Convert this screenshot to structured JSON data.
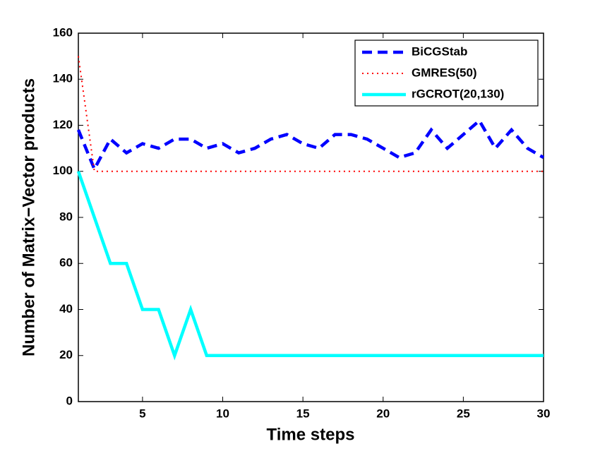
{
  "chart_data": {
    "type": "line",
    "xlabel": "Time steps",
    "ylabel": "Number of Matrix−Vector products",
    "x": [
      1,
      2,
      3,
      4,
      5,
      6,
      7,
      8,
      9,
      10,
      11,
      12,
      13,
      14,
      15,
      16,
      17,
      18,
      19,
      20,
      21,
      22,
      23,
      24,
      25,
      26,
      27,
      28,
      29,
      30
    ],
    "series": [
      {
        "name": "BiCGStab",
        "color": "#0000ff",
        "style": "dashed",
        "values": [
          118,
          101,
          114,
          108,
          112,
          110,
          114,
          114,
          110,
          112,
          108,
          110,
          114,
          116,
          112,
          110,
          116,
          116,
          114,
          110,
          106,
          108,
          118,
          110,
          116,
          122,
          110,
          118,
          110,
          106
        ]
      },
      {
        "name": "GMRES(50)",
        "color": "#ff0000",
        "style": "dotted",
        "values": [
          150,
          100,
          100,
          100,
          100,
          100,
          100,
          100,
          100,
          100,
          100,
          100,
          100,
          100,
          100,
          100,
          100,
          100,
          100,
          100,
          100,
          100,
          100,
          100,
          100,
          100,
          100,
          100,
          100,
          100
        ]
      },
      {
        "name": "rGCROT(20,130)",
        "color": "#00ffff",
        "style": "solid",
        "values": [
          100,
          80,
          60,
          60,
          40,
          40,
          20,
          40,
          20,
          20,
          20,
          20,
          20,
          20,
          20,
          20,
          20,
          20,
          20,
          20,
          20,
          20,
          20,
          20,
          20,
          20,
          20,
          20,
          20,
          20
        ]
      }
    ],
    "xlim": [
      1,
      30
    ],
    "xticks": [
      5,
      10,
      15,
      20,
      25,
      30
    ],
    "ylim": [
      0,
      160
    ],
    "yticks": [
      0,
      20,
      40,
      60,
      80,
      100,
      120,
      140,
      160
    ],
    "legend": "upper right"
  }
}
